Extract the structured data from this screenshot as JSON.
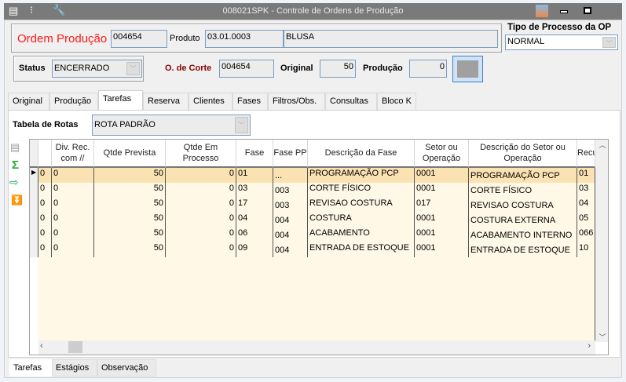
{
  "window": {
    "title": "008021SPK - Controle de Ordens de Produção"
  },
  "header": {
    "ordem_label": "Ordem Produção",
    "ordem_value": "004654",
    "produto_label": "Produto",
    "produto_code": "03.01.0003",
    "produto_desc": "BLUSA",
    "tipo_label": "Tipo de Processo da OP",
    "tipo_value": "NORMAL",
    "status_label": "Status",
    "status_value": "ENCERRADO",
    "corte_label": "O. de Corte",
    "corte_value": "004654",
    "original_label": "Original",
    "original_value": "50",
    "producao_label": "Produção",
    "producao_value": "0"
  },
  "tabs": [
    "Original",
    "Produção",
    "Tarefas",
    "Reserva",
    "Clientes",
    "Fases",
    "Filtros/Obs.",
    "Consultas",
    "Bloco K"
  ],
  "active_tab": "Tarefas",
  "rotas": {
    "label": "Tabela de Rotas",
    "value": "ROTA PADRÃO"
  },
  "grid": {
    "columns": [
      "",
      "Div. Rec. com //",
      "Qtde Prevista",
      "Qtde Em Processo",
      "Fase",
      "Fase PP",
      "Descrição da Fase",
      "Setor ou Operação",
      "Descrição do Setor ou Operação",
      "Recu"
    ],
    "rows": [
      [
        "0",
        "0",
        "50",
        "0",
        "01",
        "...",
        "PROGRAMAÇÃO PCP",
        "0001",
        "PROGRAMAÇÃO PCP",
        "01"
      ],
      [
        "0",
        "0",
        "50",
        "0",
        "03",
        "003",
        "CORTE FÍSICO",
        "0001",
        "CORTE FÍSICO",
        "03"
      ],
      [
        "0",
        "0",
        "50",
        "0",
        "17",
        "003",
        "REVISAO COSTURA",
        "017",
        "REVISAO COSTURA",
        "04"
      ],
      [
        "0",
        "0",
        "50",
        "0",
        "04",
        "004",
        "COSTURA",
        "0001",
        "COSTURA EXTERNA",
        "05"
      ],
      [
        "0",
        "0",
        "50",
        "0",
        "06",
        "004",
        "ACABAMENTO",
        "0001",
        "ACABAMENTO INTERNO",
        "066"
      ],
      [
        "0",
        "0",
        "50",
        "0",
        "09",
        "004",
        "ENTRADA DE ESTOQUE",
        "0001",
        "ENTRADA DE ESTOQUE",
        "10"
      ]
    ],
    "selected_row": 0
  },
  "bottom_tabs": [
    "Tarefas",
    "Estágios",
    "Observação"
  ],
  "colors": {
    "accent_red": "#ff1a1a",
    "dark_red": "#8b0000",
    "row_bg": "#fff8e6",
    "selected_bg": "#fbe2b3"
  }
}
